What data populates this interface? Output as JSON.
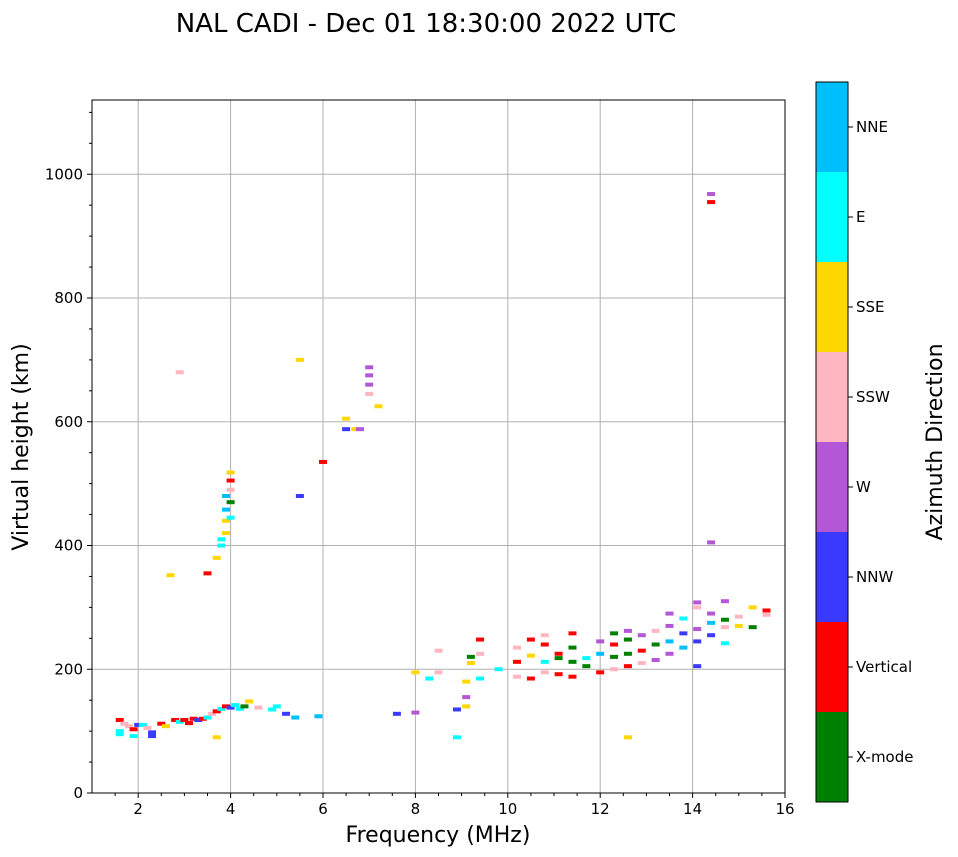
{
  "chart_data": {
    "type": "scatter",
    "title": "NAL CADI - Dec 01 18:30:00 2022 UTC",
    "xlabel": "Frequency (MHz)",
    "ylabel": "Virtual height (km)",
    "xlim": [
      1,
      16
    ],
    "ylim": [
      0,
      1120
    ],
    "xticks": [
      2,
      4,
      6,
      8,
      10,
      12,
      14,
      16
    ],
    "yticks": [
      0,
      200,
      400,
      600,
      800,
      1000
    ],
    "grid": true,
    "colorbar": {
      "label": "Azimuth Direction",
      "categories": [
        {
          "name": "X-mode",
          "color": "#008000"
        },
        {
          "name": "Vertical",
          "color": "#ff0000"
        },
        {
          "name": "NNW",
          "color": "#3a3aff"
        },
        {
          "name": "W",
          "color": "#b457d6"
        },
        {
          "name": "SSW",
          "color": "#ffb6c1"
        },
        {
          "name": "SSE",
          "color": "#ffd700"
        },
        {
          "name": "E",
          "color": "#00ffff"
        },
        {
          "name": "NNE",
          "color": "#00bfff"
        }
      ]
    },
    "points": [
      [
        1.6,
        118,
        "Vertical"
      ],
      [
        1.6,
        100,
        "E"
      ],
      [
        1.6,
        95,
        "E"
      ],
      [
        1.7,
        112,
        "SSW"
      ],
      [
        1.8,
        108,
        "SSW"
      ],
      [
        1.9,
        103,
        "Vertical"
      ],
      [
        1.9,
        92,
        "E"
      ],
      [
        2.0,
        110,
        "NNW"
      ],
      [
        2.1,
        110,
        "E"
      ],
      [
        2.2,
        105,
        "SSW"
      ],
      [
        2.3,
        98,
        "NNW"
      ],
      [
        2.3,
        92,
        "NNW"
      ],
      [
        2.5,
        112,
        "Vertical"
      ],
      [
        2.6,
        108,
        "SSE"
      ],
      [
        2.8,
        118,
        "Vertical"
      ],
      [
        2.9,
        115,
        "E"
      ],
      [
        3.0,
        118,
        "Vertical"
      ],
      [
        3.1,
        113,
        "Vertical"
      ],
      [
        3.2,
        120,
        "Vertical"
      ],
      [
        3.3,
        118,
        "NNW"
      ],
      [
        3.4,
        120,
        "Vertical"
      ],
      [
        3.5,
        122,
        "E"
      ],
      [
        3.6,
        128,
        "SSW"
      ],
      [
        3.7,
        132,
        "Vertical"
      ],
      [
        3.8,
        136,
        "E"
      ],
      [
        3.9,
        140,
        "Vertical"
      ],
      [
        4.0,
        138,
        "NNW"
      ],
      [
        4.1,
        142,
        "E"
      ],
      [
        4.2,
        136,
        "E"
      ],
      [
        4.3,
        140,
        "X-mode"
      ],
      [
        4.4,
        148,
        "SSE"
      ],
      [
        4.6,
        138,
        "SSW"
      ],
      [
        4.9,
        135,
        "E"
      ],
      [
        5.0,
        140,
        "E"
      ],
      [
        5.2,
        128,
        "NNW"
      ],
      [
        5.4,
        122,
        "NNE"
      ],
      [
        5.9,
        124,
        "NNE"
      ],
      [
        3.7,
        90,
        "SSE"
      ],
      [
        2.7,
        352,
        "SSE"
      ],
      [
        3.5,
        355,
        "Vertical"
      ],
      [
        3.7,
        380,
        "SSE"
      ],
      [
        3.8,
        400,
        "E"
      ],
      [
        3.8,
        410,
        "E"
      ],
      [
        3.9,
        420,
        "SSE"
      ],
      [
        3.9,
        440,
        "SSE"
      ],
      [
        4.0,
        445,
        "E"
      ],
      [
        3.9,
        458,
        "NNE"
      ],
      [
        4.0,
        470,
        "X-mode"
      ],
      [
        3.9,
        480,
        "NNE"
      ],
      [
        4.0,
        490,
        "SSW"
      ],
      [
        4.0,
        505,
        "Vertical"
      ],
      [
        4.0,
        518,
        "SSE"
      ],
      [
        2.9,
        680,
        "SSW"
      ],
      [
        5.5,
        700,
        "SSE"
      ],
      [
        5.5,
        480,
        "NNW"
      ],
      [
        6.0,
        535,
        "Vertical"
      ],
      [
        6.5,
        605,
        "SSE"
      ],
      [
        6.5,
        588,
        "NNW"
      ],
      [
        6.7,
        588,
        "SSE"
      ],
      [
        6.8,
        588,
        "W"
      ],
      [
        7.0,
        688,
        "W"
      ],
      [
        7.0,
        675,
        "W"
      ],
      [
        7.0,
        660,
        "W"
      ],
      [
        7.0,
        645,
        "SSW"
      ],
      [
        7.2,
        625,
        "SSE"
      ],
      [
        7.6,
        128,
        "NNW"
      ],
      [
        8.0,
        130,
        "W"
      ],
      [
        8.0,
        195,
        "SSE"
      ],
      [
        8.3,
        185,
        "E"
      ],
      [
        8.5,
        230,
        "SSW"
      ],
      [
        8.5,
        195,
        "SSW"
      ],
      [
        8.9,
        90,
        "E"
      ],
      [
        8.9,
        135,
        "NNW"
      ],
      [
        9.1,
        140,
        "SSE"
      ],
      [
        9.1,
        155,
        "W"
      ],
      [
        9.1,
        180,
        "SSE"
      ],
      [
        9.2,
        210,
        "SSE"
      ],
      [
        9.2,
        220,
        "X-mode"
      ],
      [
        9.4,
        185,
        "E"
      ],
      [
        9.4,
        225,
        "SSW"
      ],
      [
        9.4,
        248,
        "Vertical"
      ],
      [
        9.8,
        200,
        "E"
      ],
      [
        10.2,
        188,
        "SSW"
      ],
      [
        10.2,
        212,
        "Vertical"
      ],
      [
        10.2,
        235,
        "SSW"
      ],
      [
        10.5,
        185,
        "Vertical"
      ],
      [
        10.5,
        222,
        "SSE"
      ],
      [
        10.5,
        248,
        "Vertical"
      ],
      [
        10.8,
        195,
        "SSW"
      ],
      [
        10.8,
        212,
        "E"
      ],
      [
        10.8,
        240,
        "Vertical"
      ],
      [
        10.8,
        255,
        "SSW"
      ],
      [
        11.1,
        192,
        "Vertical"
      ],
      [
        11.1,
        218,
        "X-mode"
      ],
      [
        11.1,
        225,
        "Vertical"
      ],
      [
        11.4,
        188,
        "Vertical"
      ],
      [
        11.4,
        212,
        "X-mode"
      ],
      [
        11.4,
        235,
        "X-mode"
      ],
      [
        11.4,
        258,
        "Vertical"
      ],
      [
        11.7,
        205,
        "X-mode"
      ],
      [
        11.7,
        218,
        "E"
      ],
      [
        12.0,
        195,
        "Vertical"
      ],
      [
        12.0,
        225,
        "NNE"
      ],
      [
        12.0,
        245,
        "W"
      ],
      [
        12.3,
        200,
        "SSW"
      ],
      [
        12.3,
        220,
        "X-mode"
      ],
      [
        12.3,
        240,
        "Vertical"
      ],
      [
        12.3,
        258,
        "X-mode"
      ],
      [
        12.6,
        205,
        "Vertical"
      ],
      [
        12.6,
        225,
        "X-mode"
      ],
      [
        12.6,
        248,
        "X-mode"
      ],
      [
        12.6,
        262,
        "W"
      ],
      [
        12.6,
        90,
        "SSE"
      ],
      [
        12.9,
        210,
        "SSW"
      ],
      [
        12.9,
        230,
        "Vertical"
      ],
      [
        12.9,
        255,
        "W"
      ],
      [
        13.2,
        215,
        "W"
      ],
      [
        13.2,
        240,
        "X-mode"
      ],
      [
        13.2,
        262,
        "SSW"
      ],
      [
        13.5,
        225,
        "W"
      ],
      [
        13.5,
        245,
        "NNE"
      ],
      [
        13.5,
        270,
        "W"
      ],
      [
        13.5,
        290,
        "W"
      ],
      [
        13.8,
        235,
        "NNE"
      ],
      [
        13.8,
        258,
        "NNW"
      ],
      [
        13.8,
        282,
        "E"
      ],
      [
        14.1,
        205,
        "NNW"
      ],
      [
        14.1,
        245,
        "NNW"
      ],
      [
        14.1,
        265,
        "W"
      ],
      [
        14.1,
        300,
        "SSW"
      ],
      [
        14.1,
        308,
        "W"
      ],
      [
        14.4,
        255,
        "NNW"
      ],
      [
        14.4,
        275,
        "NNE"
      ],
      [
        14.4,
        290,
        "W"
      ],
      [
        14.4,
        405,
        "W"
      ],
      [
        14.4,
        955,
        "Vertical"
      ],
      [
        14.4,
        968,
        "W"
      ],
      [
        14.7,
        242,
        "E"
      ],
      [
        14.7,
        268,
        "SSW"
      ],
      [
        14.7,
        280,
        "X-mode"
      ],
      [
        14.7,
        310,
        "W"
      ],
      [
        15.0,
        270,
        "SSE"
      ],
      [
        15.0,
        285,
        "SSW"
      ],
      [
        15.3,
        268,
        "X-mode"
      ],
      [
        15.3,
        300,
        "SSE"
      ],
      [
        15.6,
        288,
        "SSW"
      ],
      [
        15.6,
        295,
        "Vertical"
      ]
    ]
  }
}
